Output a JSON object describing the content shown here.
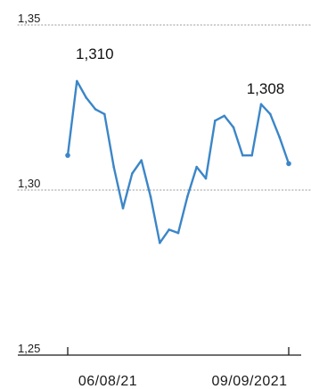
{
  "chart_data": {
    "type": "line",
    "ylim": [
      1.25,
      1.35
    ],
    "yticks": [
      {
        "value": 1.35,
        "label": "1,35"
      },
      {
        "value": 1.3,
        "label": "1,30"
      },
      {
        "value": 1.25,
        "label": "1,25"
      }
    ],
    "xticks": [
      {
        "index": 0,
        "label": "06/08/21"
      },
      {
        "index": 24,
        "label": "09/09/2021"
      }
    ],
    "values": [
      1.3105,
      1.333,
      1.328,
      1.3245,
      1.323,
      1.307,
      1.2945,
      1.305,
      1.309,
      1.298,
      1.284,
      1.288,
      1.287,
      1.298,
      1.307,
      1.3035,
      1.321,
      1.3225,
      1.319,
      1.3105,
      1.3105,
      1.326,
      1.323,
      1.316,
      1.308
    ],
    "annotations": [
      {
        "index": 1,
        "label": "1,310"
      },
      {
        "index": 21,
        "label": "1,308"
      }
    ],
    "grid": true,
    "line_color": "#3b86c8",
    "grid_color": "#9a9a9a",
    "axis_color": "#1a1a1a"
  }
}
